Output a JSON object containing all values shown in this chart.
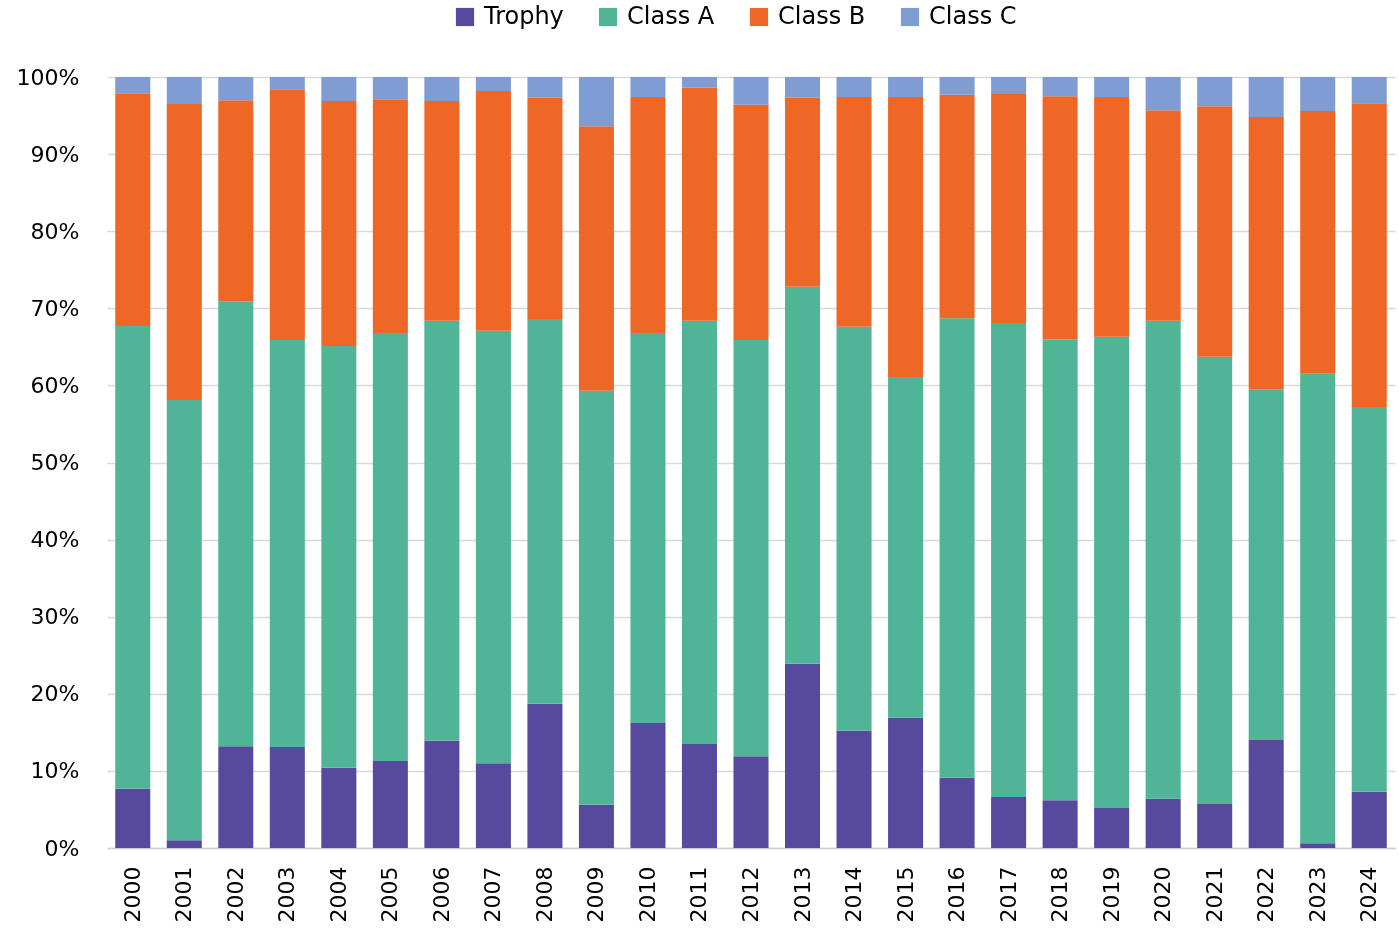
{
  "chart_data": {
    "type": "bar",
    "stacked": true,
    "categories": [
      "2000",
      "2001",
      "2002",
      "2003",
      "2004",
      "2005",
      "2006",
      "2007",
      "2008",
      "2009",
      "2010",
      "2011",
      "2012",
      "2013",
      "2014",
      "2015",
      "2016",
      "2017",
      "2018",
      "2019",
      "2020",
      "2021",
      "2022",
      "2023",
      "2024"
    ],
    "series": [
      {
        "name": "Trophy",
        "color": "#574a9e",
        "values": [
          7.7,
          1.0,
          13.2,
          13.1,
          10.4,
          11.3,
          13.9,
          11.0,
          18.7,
          5.6,
          16.2,
          13.5,
          11.9,
          23.9,
          15.2,
          16.9,
          9.1,
          6.6,
          6.2,
          5.2,
          6.4,
          5.7,
          14.0,
          0.6,
          7.3
        ]
      },
      {
        "name": "Class A",
        "color": "#4fb596",
        "values": [
          60.0,
          57.1,
          57.7,
          52.8,
          54.7,
          55.5,
          54.5,
          56.1,
          49.9,
          53.7,
          50.6,
          54.9,
          54.0,
          48.9,
          52.4,
          44.2,
          59.6,
          61.5,
          59.8,
          61.1,
          62.0,
          58.0,
          45.5,
          60.9,
          49.9
        ]
      },
      {
        "name": "Class B",
        "color": "#ef6727",
        "values": [
          30.2,
          38.4,
          26.1,
          32.5,
          31.8,
          30.3,
          28.5,
          31.1,
          28.7,
          34.3,
          30.6,
          30.2,
          30.5,
          24.5,
          29.8,
          36.3,
          29.0,
          29.7,
          31.5,
          31.1,
          27.3,
          32.5,
          35.3,
          34.1,
          39.4
        ]
      },
      {
        "name": "Class C",
        "color": "#7f9dd3",
        "values": [
          2.1,
          3.5,
          3.0,
          1.6,
          3.1,
          2.9,
          3.1,
          1.8,
          2.7,
          6.4,
          2.6,
          1.4,
          3.6,
          2.7,
          2.6,
          2.6,
          2.3,
          2.2,
          2.5,
          2.6,
          4.3,
          3.8,
          5.2,
          4.4,
          3.4
        ]
      }
    ],
    "ylim": [
      0,
      100
    ],
    "yticks": [
      {
        "value": 0,
        "label": "0%"
      },
      {
        "value": 10,
        "label": "10%"
      },
      {
        "value": 20,
        "label": "20%"
      },
      {
        "value": 30,
        "label": "30%"
      },
      {
        "value": 40,
        "label": "40%"
      },
      {
        "value": 50,
        "label": "50%"
      },
      {
        "value": 60,
        "label": "60%"
      },
      {
        "value": 70,
        "label": "70%"
      },
      {
        "value": 80,
        "label": "80%"
      },
      {
        "value": 90,
        "label": "90%"
      },
      {
        "value": 100,
        "label": "100%"
      }
    ],
    "grid": "y",
    "legend": "top"
  }
}
